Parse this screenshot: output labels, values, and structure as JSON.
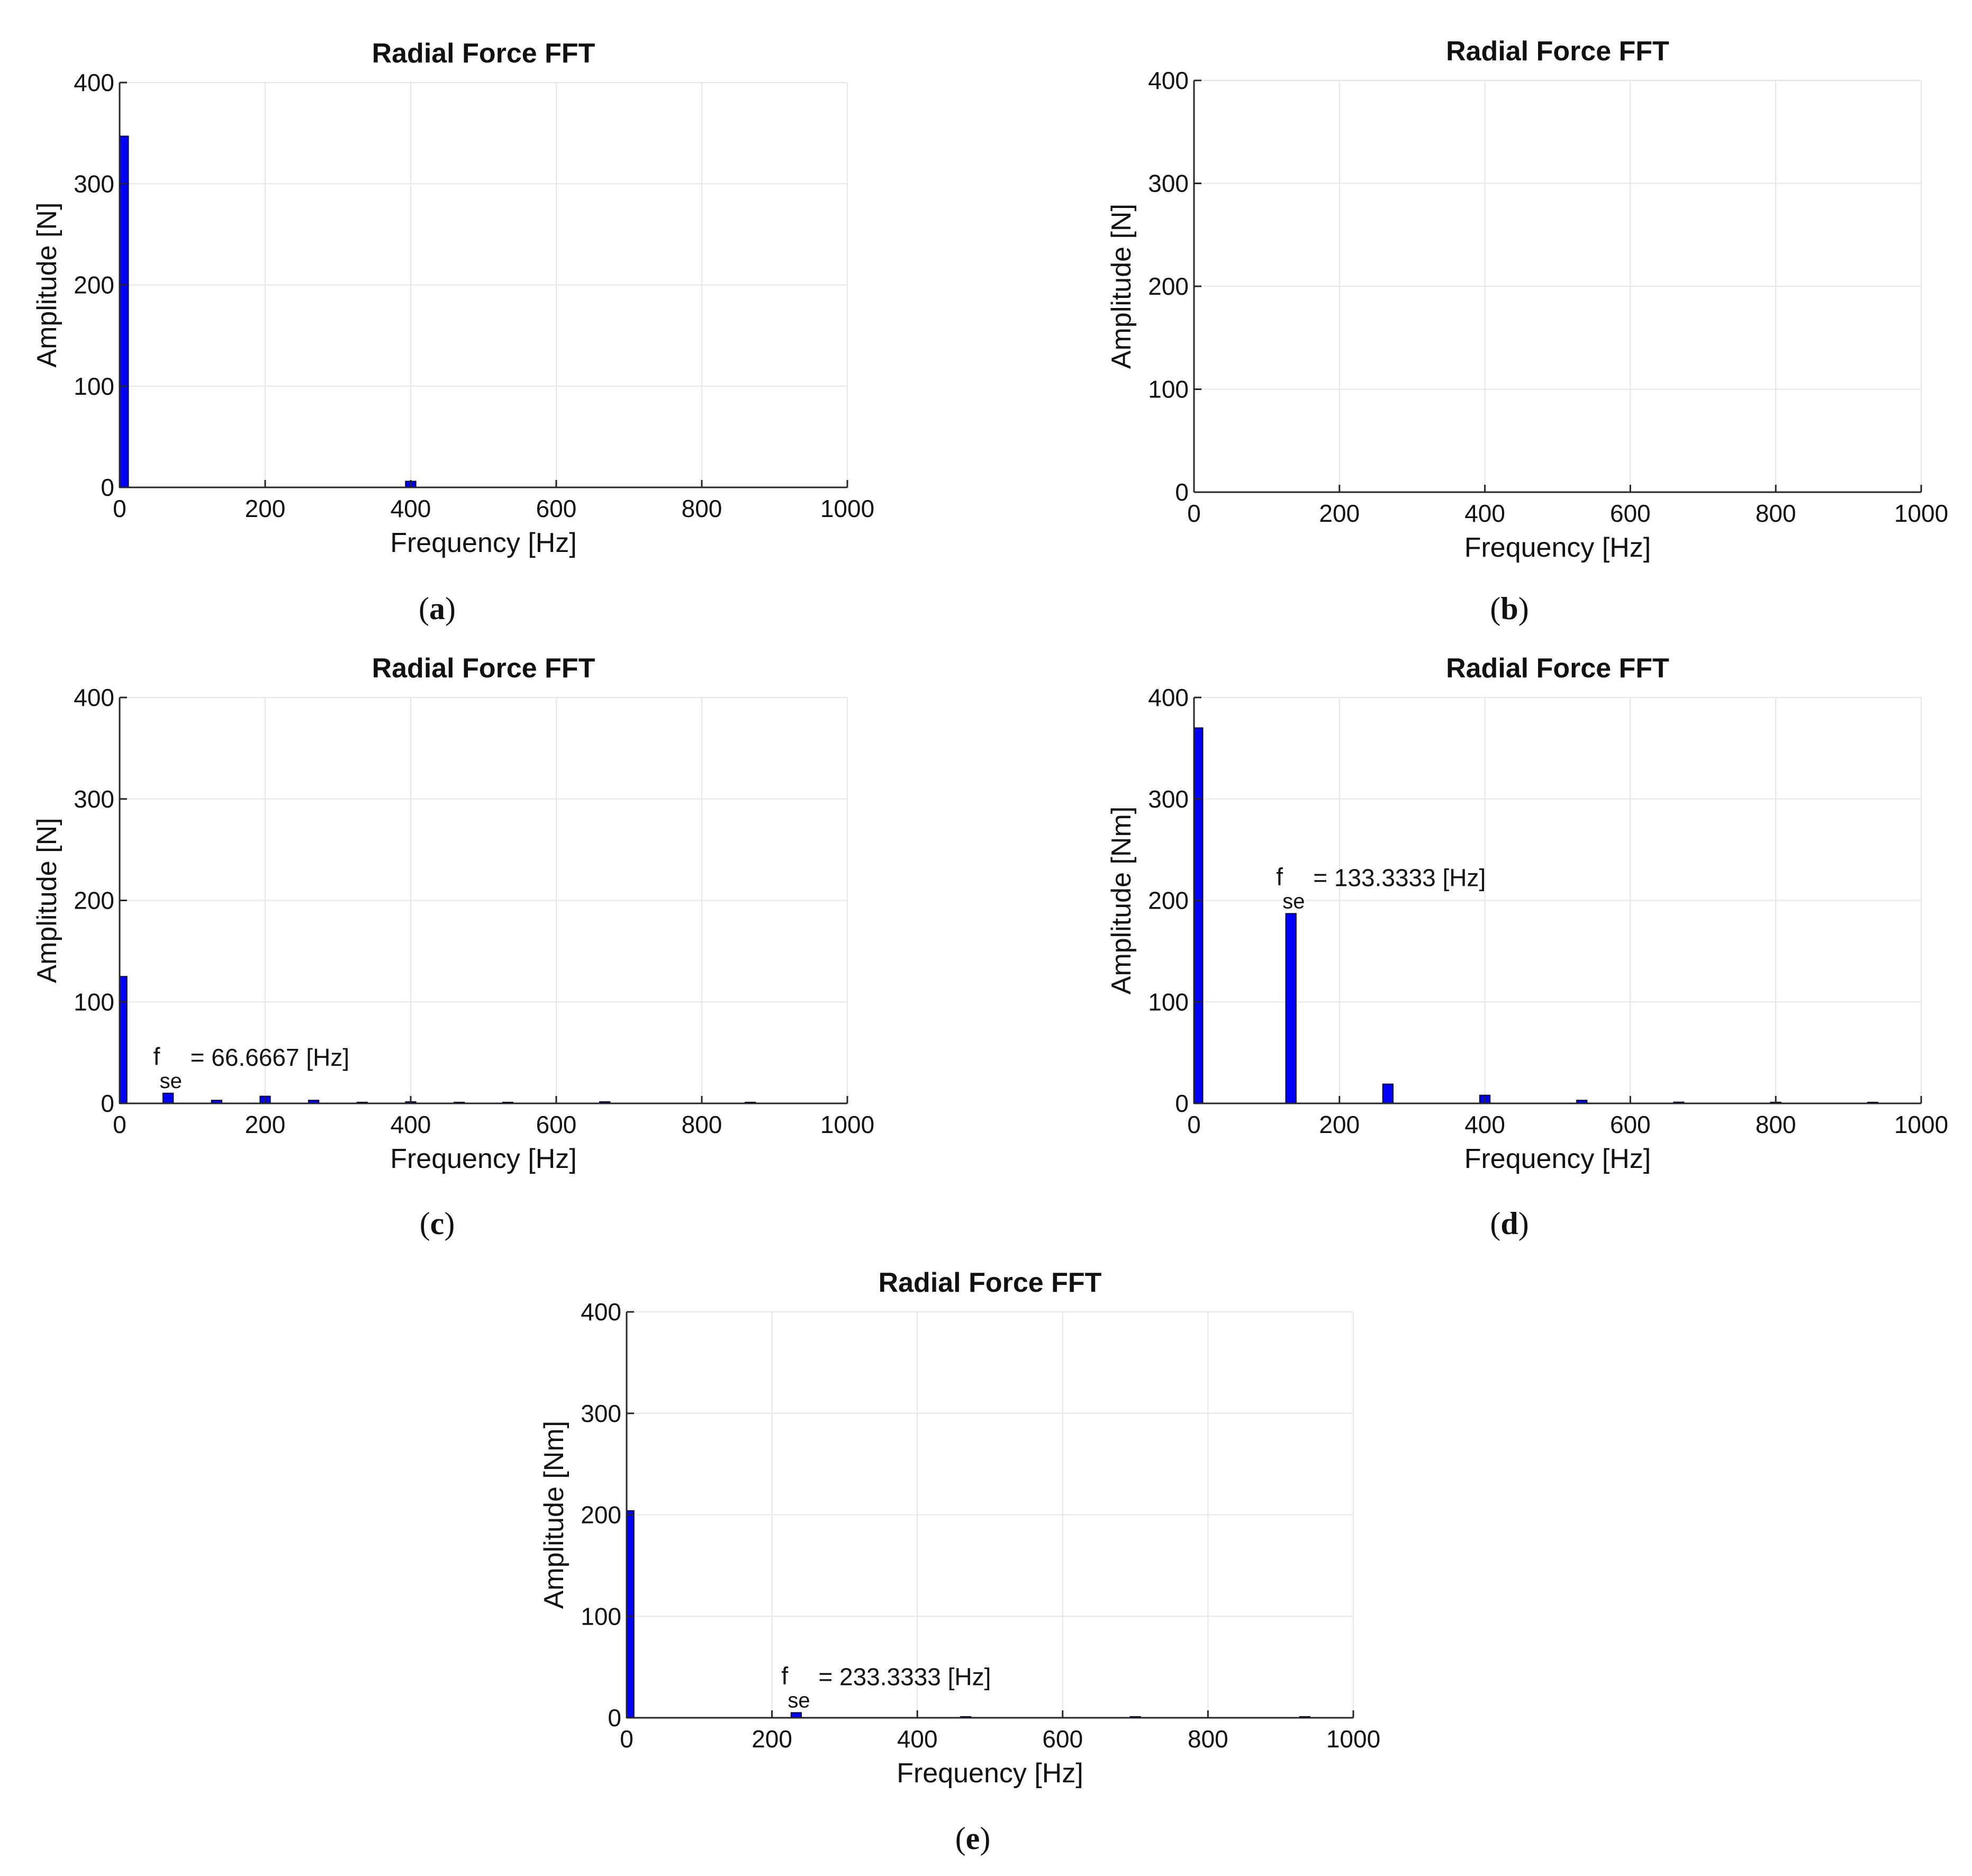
{
  "colors": {
    "bar": "#0000ff",
    "bar_edge": "#000033",
    "grid": "#e6e6e6",
    "axis": "#262626",
    "text": "#111111"
  },
  "chart_data": [
    {
      "id": "a",
      "caption": "a",
      "type": "bar",
      "title": "Radial Force FFT",
      "xlabel": "Frequency [Hz]",
      "ylabel": "Amplitude [N]",
      "xlim": [
        0,
        1000
      ],
      "ylim": [
        0,
        400
      ],
      "xticks": [
        0,
        200,
        400,
        600,
        800,
        1000
      ],
      "yticks": [
        0,
        100,
        200,
        300,
        400
      ],
      "xtick_labels": [
        "0",
        "200",
        "400",
        "600",
        "800",
        "1000"
      ],
      "ytick_labels": [
        "0",
        "100",
        "200",
        "300",
        "400"
      ],
      "grid": true,
      "bar_width_hz": 14,
      "x": [
        5,
        400
      ],
      "values": [
        347,
        6
      ],
      "annotation": null
    },
    {
      "id": "b",
      "caption": "b",
      "type": "bar",
      "title": "Radial Force FFT",
      "xlabel": "Frequency [Hz]",
      "ylabel": "Amplitude [N]",
      "xlim": [
        0,
        1000
      ],
      "ylim": [
        0,
        400
      ],
      "xticks": [
        0,
        200,
        400,
        600,
        800,
        1000
      ],
      "yticks": [
        0,
        100,
        200,
        300,
        400
      ],
      "xtick_labels": [
        "0",
        "200",
        "400",
        "600",
        "800",
        "1000"
      ],
      "ytick_labels": [
        "0",
        "100",
        "200",
        "300",
        "400"
      ],
      "grid": true,
      "bar_width_hz": 14,
      "x": [],
      "values": [],
      "annotation": null
    },
    {
      "id": "c",
      "caption": "c",
      "type": "bar",
      "title": "Radial Force FFT",
      "xlabel": "Frequency [Hz]",
      "ylabel": "Amplitude [N]",
      "xlim": [
        0,
        1000
      ],
      "ylim": [
        0,
        400
      ],
      "xticks": [
        0,
        200,
        400,
        600,
        800,
        1000
      ],
      "yticks": [
        0,
        100,
        200,
        300,
        400
      ],
      "xtick_labels": [
        "0",
        "200",
        "400",
        "600",
        "800",
        "1000"
      ],
      "ytick_labels": [
        "0",
        "100",
        "200",
        "300",
        "400"
      ],
      "grid": true,
      "bar_width_hz": 14,
      "x": [
        3,
        66.6667,
        133.3333,
        200,
        266.6667,
        333.3333,
        400,
        466.6667,
        533.3333,
        666.6667,
        866.6667
      ],
      "values": [
        125,
        10,
        3,
        7,
        3,
        0.8,
        1.5,
        0.8,
        0.8,
        1.5,
        0.6
      ],
      "annotation": {
        "x": 66.6667,
        "y": 10,
        "base": "f",
        "sub": "se",
        "rest": "= 66.6667 [Hz]"
      }
    },
    {
      "id": "d",
      "caption": "d",
      "type": "bar",
      "title": "Radial Force FFT",
      "xlabel": "Frequency [Hz]",
      "ylabel": "Amplitude [Nm]",
      "xlim": [
        0,
        1000
      ],
      "ylim": [
        0,
        400
      ],
      "xticks": [
        0,
        200,
        400,
        600,
        800,
        1000
      ],
      "yticks": [
        0,
        100,
        200,
        300,
        400
      ],
      "xtick_labels": [
        "0",
        "200",
        "400",
        "600",
        "800",
        "1000"
      ],
      "ytick_labels": [
        "0",
        "100",
        "200",
        "300",
        "400"
      ],
      "grid": true,
      "bar_width_hz": 14,
      "x": [
        5,
        133.3333,
        266.6667,
        400,
        533.3333,
        666.6667,
        800,
        933.3333
      ],
      "values": [
        370,
        187,
        19,
        8,
        3,
        1.2,
        0.6,
        0.5
      ],
      "annotation": {
        "x": 133.3333,
        "y": 187,
        "base": "f",
        "sub": "se",
        "rest": "= 133.3333 [Hz]"
      }
    },
    {
      "id": "e",
      "caption": "e",
      "type": "bar",
      "title": "Radial Force FFT",
      "xlabel": "Frequency [Hz]",
      "ylabel": "Amplitude [Nm]",
      "xlim": [
        0,
        1000
      ],
      "ylim": [
        0,
        400
      ],
      "xticks": [
        0,
        200,
        400,
        600,
        800,
        1000
      ],
      "yticks": [
        0,
        100,
        200,
        300,
        400
      ],
      "xtick_labels": [
        "0",
        "200",
        "400",
        "600",
        "800",
        "1000"
      ],
      "ytick_labels": [
        "0",
        "100",
        "200",
        "300",
        "400"
      ],
      "grid": true,
      "bar_width_hz": 14,
      "x": [
        3,
        233.3333,
        466.6667,
        700,
        933.3333
      ],
      "values": [
        204,
        5,
        0.8,
        0.6,
        0.5
      ],
      "annotation": {
        "x": 233.3333,
        "y": 5,
        "base": "f",
        "sub": "se",
        "rest": "= 233.3333 [Hz]"
      }
    }
  ]
}
